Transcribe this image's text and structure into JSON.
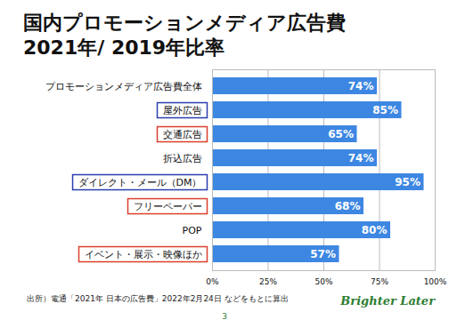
{
  "chart_data": {
    "type": "bar",
    "orientation": "horizontal",
    "title": "国内プロモーションメディア広告費\n2021年/ 2019年比率",
    "categories": [
      "プロモーションメディア広告費全体",
      "屋外広告",
      "交通広告",
      "折込広告",
      "ダイレクト・メール（DM）",
      "フリーペーパー",
      "POP",
      "イベント・展示・映像ほか"
    ],
    "values": [
      74,
      85,
      65,
      74,
      95,
      68,
      80,
      57
    ],
    "value_labels": [
      "74%",
      "85%",
      "65%",
      "74%",
      "95%",
      "68%",
      "80%",
      "57%"
    ],
    "color": "#3d87e3",
    "xlim": [
      0,
      100
    ],
    "xticks": [
      {
        "value": 0,
        "label": "0%"
      },
      {
        "value": 25,
        "label": "25%"
      },
      {
        "value": 50,
        "label": "50%"
      },
      {
        "value": 75,
        "label": "75%"
      },
      {
        "value": 100,
        "label": "100%"
      }
    ],
    "grid": true,
    "data_labels": true,
    "source": "出所）電通「2021年 日本の広告費」2022年2月24日 などをもとに算出",
    "footer": "Brighter Later",
    "page_number": "3"
  }
}
